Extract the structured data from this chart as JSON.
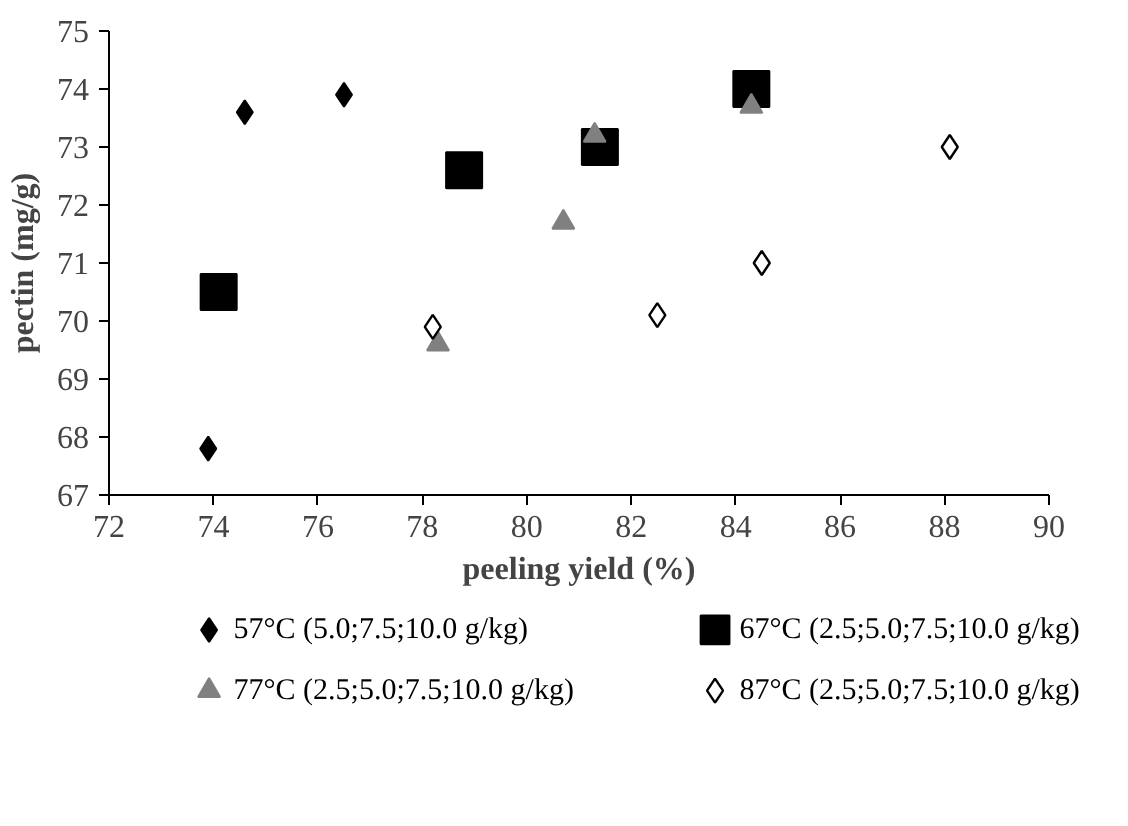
{
  "chart_data": {
    "type": "scatter",
    "xlabel": "peeling yield (%)",
    "ylabel": "pectin (mg/g)",
    "xlim": [
      72,
      90
    ],
    "xticks": [
      72,
      74,
      76,
      78,
      80,
      82,
      84,
      86,
      88,
      90
    ],
    "ylim": [
      67,
      75
    ],
    "yticks": [
      67,
      68,
      69,
      70,
      71,
      72,
      73,
      74,
      75
    ],
    "grid": false,
    "legend": "bottom",
    "series": [
      {
        "name": "57°C  (5.0;7.5;10.0 g/kg)",
        "color": "#000000",
        "marker": "diamond",
        "x": [
          73.9,
          74.6,
          76.5
        ],
        "values": [
          67.8,
          73.6,
          73.9
        ]
      },
      {
        "name": "67°C (2.5;5.0;7.5;10.0 g/kg)",
        "color": "#000000",
        "marker": "square",
        "x": [
          74.1,
          78.8,
          81.4,
          84.3
        ],
        "values": [
          70.5,
          72.6,
          73.0,
          74.0
        ]
      },
      {
        "name": "77°C (2.5;5.0;7.5;10.0 g/kg)",
        "color": "#808080",
        "marker": "triangle",
        "x": [
          78.3,
          80.7,
          81.3,
          84.3
        ],
        "values": [
          69.6,
          71.7,
          73.2,
          73.7
        ]
      },
      {
        "name": "87°C (2.5;5.0;7.5;10.0 g/kg)",
        "color": "#ffffff",
        "marker": "diamond",
        "x": [
          78.2,
          82.5,
          84.5,
          88.1
        ],
        "values": [
          69.9,
          70.1,
          71.0,
          73.0
        ]
      }
    ]
  }
}
